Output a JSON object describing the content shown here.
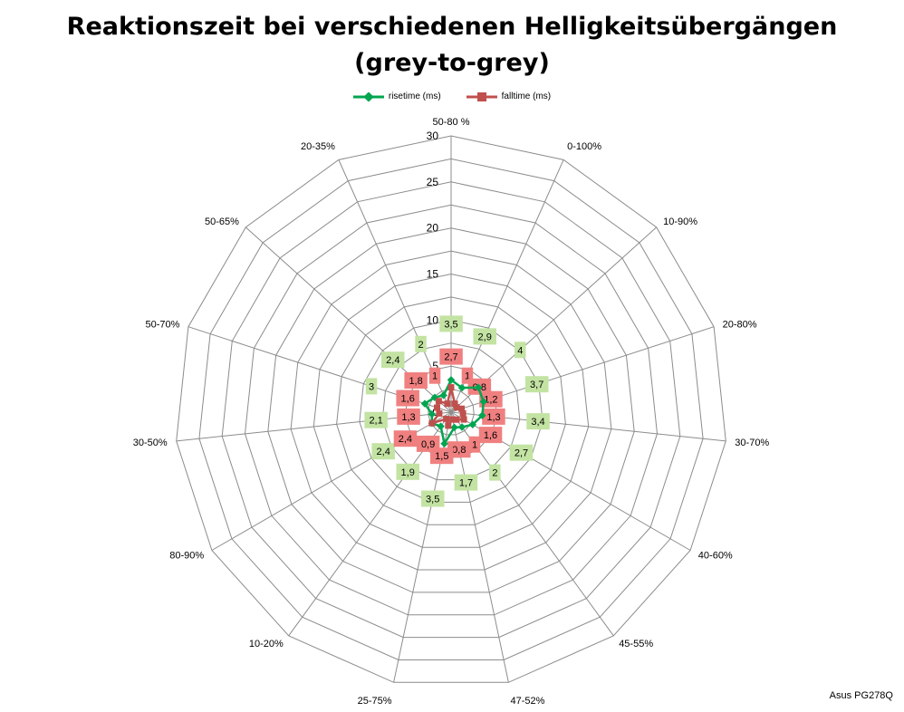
{
  "chart_data": {
    "type": "radar",
    "title": "Reaktionszeit bei verschiedenen Helligkeitsübergängen",
    "subtitle": "(grey-to-grey)",
    "categories": [
      "50-80 %",
      "0-100%",
      "10-90%",
      "20-80%",
      "30-70%",
      "40-60%",
      "45-55%",
      "47-52%",
      "25-75%",
      "10-20%",
      "80-90%",
      "30-50%",
      "50-70%",
      "50-65%",
      "20-35%"
    ],
    "series": [
      {
        "name": "risetime (ms)",
        "color": "#00a550",
        "label_bg": "#c3e3a3",
        "values": [
          3.5,
          2.9,
          4,
          3.7,
          3.4,
          2.7,
          2,
          1.7,
          3.5,
          1.9,
          2.4,
          2.1,
          3,
          2.4,
          2
        ],
        "labels": [
          "3,5",
          "2,9",
          "4",
          "3,7",
          "3,4",
          "2,7",
          "2",
          "1,7",
          "3,5",
          "1,9",
          "2,4",
          "2,1",
          "3",
          "2,4",
          "2"
        ]
      },
      {
        "name": "falltime (ms)",
        "color": "#c0504d",
        "label_bg": "#f08080",
        "values": [
          2.7,
          1,
          0.8,
          1.2,
          1.3,
          1.6,
          1,
          0.8,
          1.5,
          0.9,
          2.4,
          1.3,
          1.6,
          1.8,
          1
        ],
        "labels": [
          "2,7",
          "1",
          "0,8",
          "1,2",
          "1,3",
          "1,6",
          "1",
          "0,8",
          "1,5",
          "0,9",
          "2,4",
          "1,3",
          "1,6",
          "1,8",
          "1"
        ]
      }
    ],
    "r_ticks": [
      "0",
      "5",
      "10",
      "15",
      "20",
      "25",
      "30"
    ],
    "rlim": [
      0,
      30
    ],
    "legend_position": "top",
    "watermark": "Asus PG278Q"
  }
}
